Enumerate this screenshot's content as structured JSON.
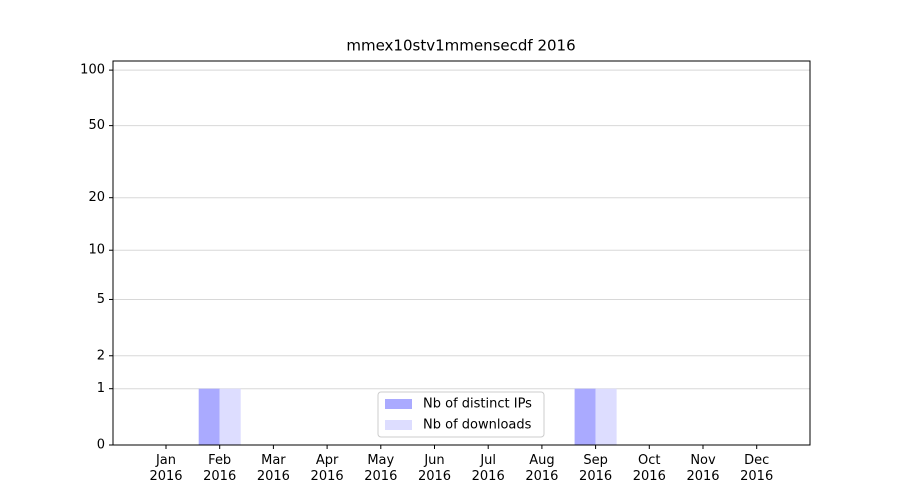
{
  "chart_data": {
    "type": "bar",
    "title": "mmex10stv1mmensecdf 2016",
    "categories": [
      "Jan\n2016",
      "Feb\n2016",
      "Mar\n2016",
      "Apr\n2016",
      "May\n2016",
      "Jun\n2016",
      "Jul\n2016",
      "Aug\n2016",
      "Sep\n2016",
      "Oct\n2016",
      "Nov\n2016",
      "Dec\n2016"
    ],
    "series": [
      {
        "name": "Nb of distinct IPs",
        "color": "#aaaaff",
        "values": [
          0,
          1,
          0,
          0,
          0,
          0,
          0,
          0,
          1,
          0,
          0,
          0
        ]
      },
      {
        "name": "Nb of downloads",
        "color": "#ddddff",
        "values": [
          0,
          1,
          0,
          0,
          0,
          0,
          0,
          0,
          1,
          0,
          0,
          0
        ]
      }
    ],
    "yscale": "log1p",
    "ylim": [
      0,
      112
    ],
    "yticks": [
      0,
      1,
      2,
      5,
      10,
      20,
      50,
      100
    ],
    "grid": true,
    "legend": "lower center"
  }
}
